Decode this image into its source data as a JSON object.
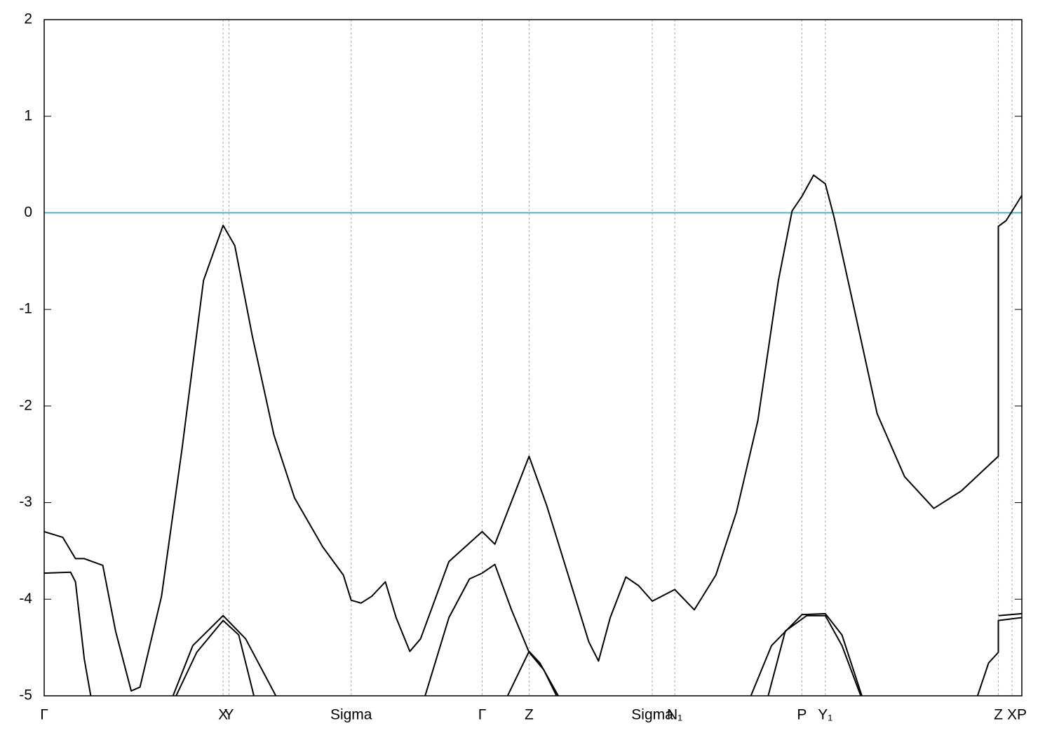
{
  "chart_data": {
    "type": "line",
    "xlim": [
      0,
      1
    ],
    "xticks": [
      {
        "value": 0,
        "label": "Γ"
      },
      {
        "value": 0.183,
        "label": "X"
      },
      {
        "value": 0.189,
        "label": "Y"
      },
      {
        "value": 0.314,
        "label": "Sigma"
      },
      {
        "value": 0.448,
        "label": "Γ"
      },
      {
        "value": 0.496,
        "label": "Z"
      },
      {
        "value": 0.622,
        "label": "Sigma"
      },
      {
        "value": 0.645,
        "label": "N₁"
      },
      {
        "value": 0.775,
        "label": "P"
      },
      {
        "value": 0.799,
        "label": "Y₁"
      },
      {
        "value": 0.976,
        "label": "Z"
      },
      {
        "value": 0.99,
        "label": "X"
      },
      {
        "value": 1,
        "label": "P"
      }
    ],
    "ylim": [
      -5,
      2
    ],
    "yticks": [
      -5,
      -4,
      -3,
      -2,
      -1,
      0,
      1,
      2
    ],
    "grid": true,
    "fermi_level": 0,
    "fermi_color": "#4fb3c8",
    "series": [
      {
        "color": "#000000",
        "x": [
          0,
          0.019,
          0.032,
          0.041,
          0.06,
          0.073,
          0.089,
          0.098,
          0.12,
          0.141,
          0.163,
          0.183,
          0.195,
          0.213,
          0.235,
          0.256,
          0.285,
          0.306,
          0.314,
          0.324,
          0.335,
          0.349,
          0.36,
          0.374,
          0.385,
          0.414,
          0.448,
          0.461,
          0.471,
          0.496,
          0.514,
          0.536,
          0.557,
          0.567,
          0.579,
          0.595,
          0.608,
          0.622,
          0.645,
          0.665,
          0.687,
          0.708,
          0.73,
          0.751,
          0.765,
          0.775,
          0.787,
          0.799,
          0.808,
          0.83,
          0.852,
          0.88,
          0.91,
          0.938,
          0.976,
          0.976,
          0.984,
          1
        ],
        "values": [
          -3.3,
          -3.36,
          -3.58,
          -3.58,
          -3.65,
          -4.33,
          -4.95,
          -4.91,
          -3.97,
          -2.44,
          -0.7,
          -0.13,
          -0.34,
          -1.28,
          -2.3,
          -2.95,
          -3.46,
          -3.75,
          -4.01,
          -4.04,
          -3.97,
          -3.82,
          -4.19,
          -4.54,
          -4.41,
          -3.61,
          -3.3,
          -3.43,
          -3.17,
          -2.52,
          -3.03,
          -3.75,
          -4.44,
          -4.64,
          -4.19,
          -3.77,
          -3.86,
          -4.02,
          -3.9,
          -4.11,
          -3.75,
          -3.1,
          -2.15,
          -0.7,
          0.02,
          0.17,
          0.39,
          0.3,
          -0.05,
          -1.06,
          -2.08,
          -2.73,
          -3.06,
          -2.88,
          -2.52,
          -0.14,
          -0.08,
          0.18
        ]
      },
      {
        "color": "#000000",
        "x": [
          0,
          0.027,
          0.032,
          0.041,
          0.048,
          null,
          0.134,
          0.156,
          0.183,
          0.199,
          0.215,
          null,
          0.389,
          0.414,
          0.435,
          0.448,
          0.461,
          0.478,
          0.496,
          0.511,
          0.525,
          null,
          0.74,
          0.758,
          0.78,
          0.799,
          0.816,
          0.836,
          null,
          0.954,
          0.966,
          0.976,
          0.976,
          1
        ],
        "values": [
          -3.73,
          -3.72,
          -3.82,
          -4.62,
          -5.02,
          null,
          -5.02,
          -4.55,
          -4.22,
          -4.37,
          -5.02,
          null,
          -5.02,
          -4.19,
          -3.79,
          -3.73,
          -3.64,
          -4.11,
          -4.55,
          -4.73,
          -5.02,
          null,
          -5.02,
          -4.33,
          -4.17,
          -4.17,
          -4.48,
          -5.02,
          null,
          -5.02,
          -4.66,
          -4.55,
          -4.22,
          -4.19
        ]
      },
      {
        "color": "#000000",
        "x": [
          0.131,
          0.152,
          0.183,
          0.206,
          0.238,
          null,
          0.473,
          0.496,
          0.507,
          0.527,
          null,
          0.722,
          0.744,
          0.775,
          0.799,
          0.816,
          0.837,
          null,
          0.976,
          1
        ],
        "values": [
          -5.02,
          -4.48,
          -4.17,
          -4.41,
          -5.02,
          null,
          -5.02,
          -4.54,
          -4.66,
          -5.02,
          null,
          -5.02,
          -4.48,
          -4.16,
          -4.15,
          -4.37,
          -5.02,
          null,
          -4.17,
          -4.15
        ]
      }
    ]
  }
}
